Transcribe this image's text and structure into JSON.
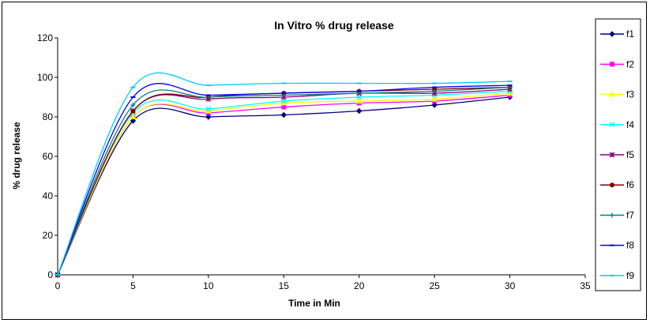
{
  "chart_data": {
    "type": "line",
    "title": "In Vitro %  drug release",
    "xlabel": "Time in Min",
    "ylabel": "% drug release",
    "xlim": [
      0,
      35
    ],
    "ylim": [
      0,
      120
    ],
    "xticks": [
      0,
      5,
      10,
      15,
      20,
      25,
      30,
      35
    ],
    "yticks": [
      0,
      20,
      40,
      60,
      80,
      100,
      120
    ],
    "grid": false,
    "legend_position": "right",
    "x": [
      0,
      5,
      10,
      15,
      20,
      25,
      30
    ],
    "series": [
      {
        "name": "f1",
        "color": "#000080",
        "marker": "diamond",
        "values": [
          0,
          78,
          80,
          81,
          83,
          86,
          90
        ]
      },
      {
        "name": "f2",
        "color": "#FF00FF",
        "marker": "square",
        "values": [
          0,
          80,
          82,
          85,
          87,
          88,
          91
        ]
      },
      {
        "name": "f3",
        "color": "#FFFF00",
        "marker": "triangle",
        "values": [
          0,
          80,
          83,
          87,
          88,
          89,
          92
        ]
      },
      {
        "name": "f4",
        "color": "#00FFFF",
        "marker": "x",
        "values": [
          0,
          82,
          84,
          88,
          90,
          91,
          93
        ]
      },
      {
        "name": "f5",
        "color": "#800080",
        "marker": "star",
        "values": [
          0,
          83,
          89,
          90,
          92,
          92,
          94
        ]
      },
      {
        "name": "f6",
        "color": "#800000",
        "marker": "circle",
        "values": [
          0,
          83,
          90,
          92,
          93,
          94,
          95
        ]
      },
      {
        "name": "f7",
        "color": "#008080",
        "marker": "plus",
        "values": [
          0,
          86,
          90,
          91,
          92,
          93,
          95
        ]
      },
      {
        "name": "f8",
        "color": "#0000FF",
        "marker": "dash",
        "values": [
          0,
          90,
          91,
          92,
          93,
          95,
          96
        ]
      },
      {
        "name": "f9",
        "color": "#00CCFF",
        "marker": "dash",
        "values": [
          0,
          95,
          96,
          97,
          97,
          97,
          98
        ]
      }
    ]
  }
}
